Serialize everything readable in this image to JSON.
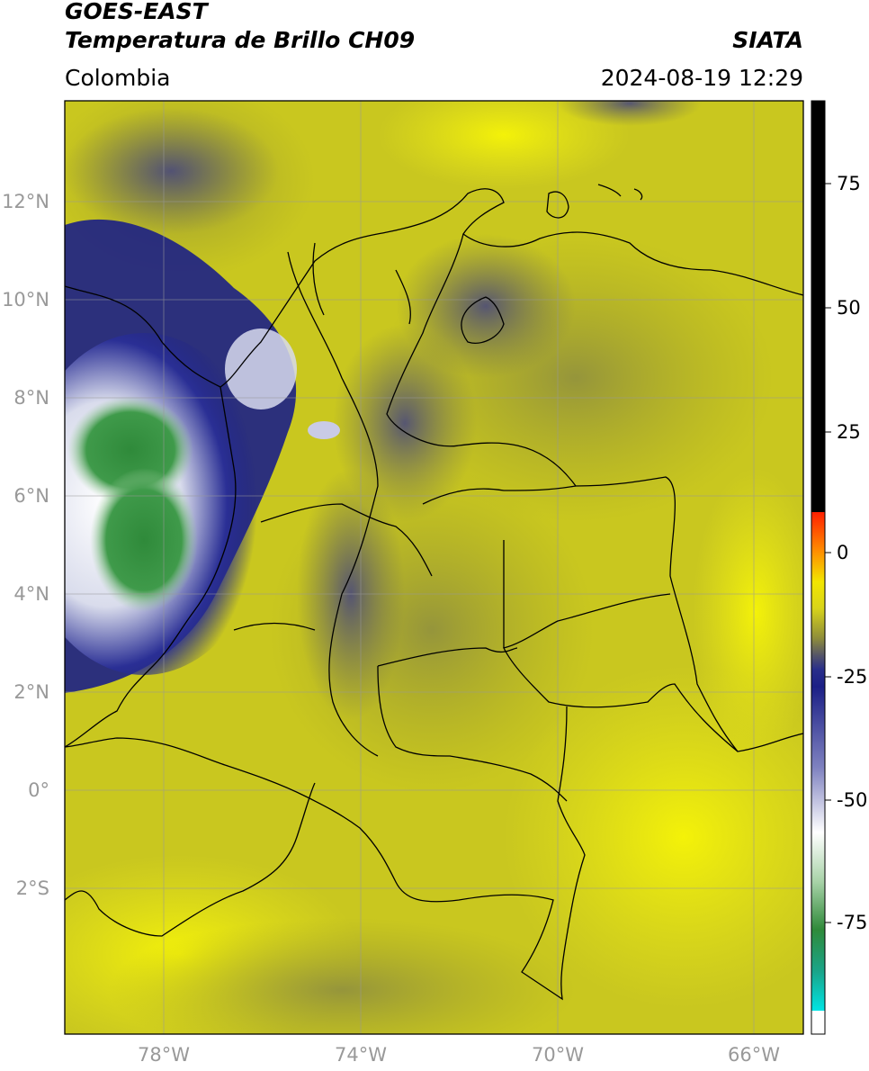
{
  "header": {
    "title_line1": "GOES-EAST",
    "title_line2": "Temperatura de Brillo CH09",
    "subtitle": "Colombia",
    "organization": "SIATA",
    "datetime": "2024-08-19 12:29"
  },
  "map": {
    "region": "Colombia",
    "lon_range": [
      -80,
      -65
    ],
    "lat_range": [
      -5,
      14
    ],
    "lat_ticks": [
      "12°N",
      "10°N",
      "8°N",
      "6°N",
      "4°N",
      "2°N",
      "0°",
      "2°S"
    ],
    "lon_ticks": [
      "78°W",
      "74°W",
      "70°W",
      "66°W"
    ],
    "grid": true
  },
  "colorbar": {
    "ticks": [
      "75",
      "50",
      "25",
      "0",
      "-25",
      "-50",
      "-75"
    ],
    "colors": {
      "black": "#000000",
      "red": "#ff2000",
      "orange": "#ff9a00",
      "yellow": "#e8e61a",
      "olive": "#a3a229",
      "navy": "#1b1f86",
      "white": "#ffffff",
      "green": "#2f8a3a",
      "teal": "#1aa58a",
      "cyan": "#00e4e4"
    }
  }
}
